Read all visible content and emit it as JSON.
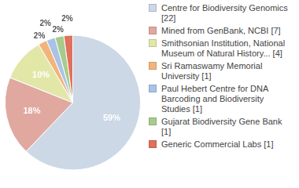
{
  "chart_data": {
    "type": "pie",
    "categories": [
      "Centre for Biodiversity Genomics [22]",
      "Mined from GenBank, NCBI [7]",
      "Smithsonian Institution, National Museum of Natural History... [4]",
      "Sri Ramaswamy Memorial University [1]",
      "Paul Hebert Centre for DNA Barcoding and Biodiversity Studies [1]",
      "Gujarat Biodiversity Gene Bank [1]",
      "Generic Commercial Labs [1]"
    ],
    "values": [
      59,
      18,
      10,
      2,
      2,
      2,
      2
    ],
    "value_labels": [
      "59%",
      "18%",
      "10%",
      "2%",
      "2%",
      "2%",
      "2%"
    ],
    "colors": [
      "#ccd8e6",
      "#e0a89f",
      "#e2e7a8",
      "#f1b57c",
      "#a9c3e6",
      "#a7cb8c",
      "#e0715c"
    ],
    "data_labels": true,
    "legend": "right"
  }
}
